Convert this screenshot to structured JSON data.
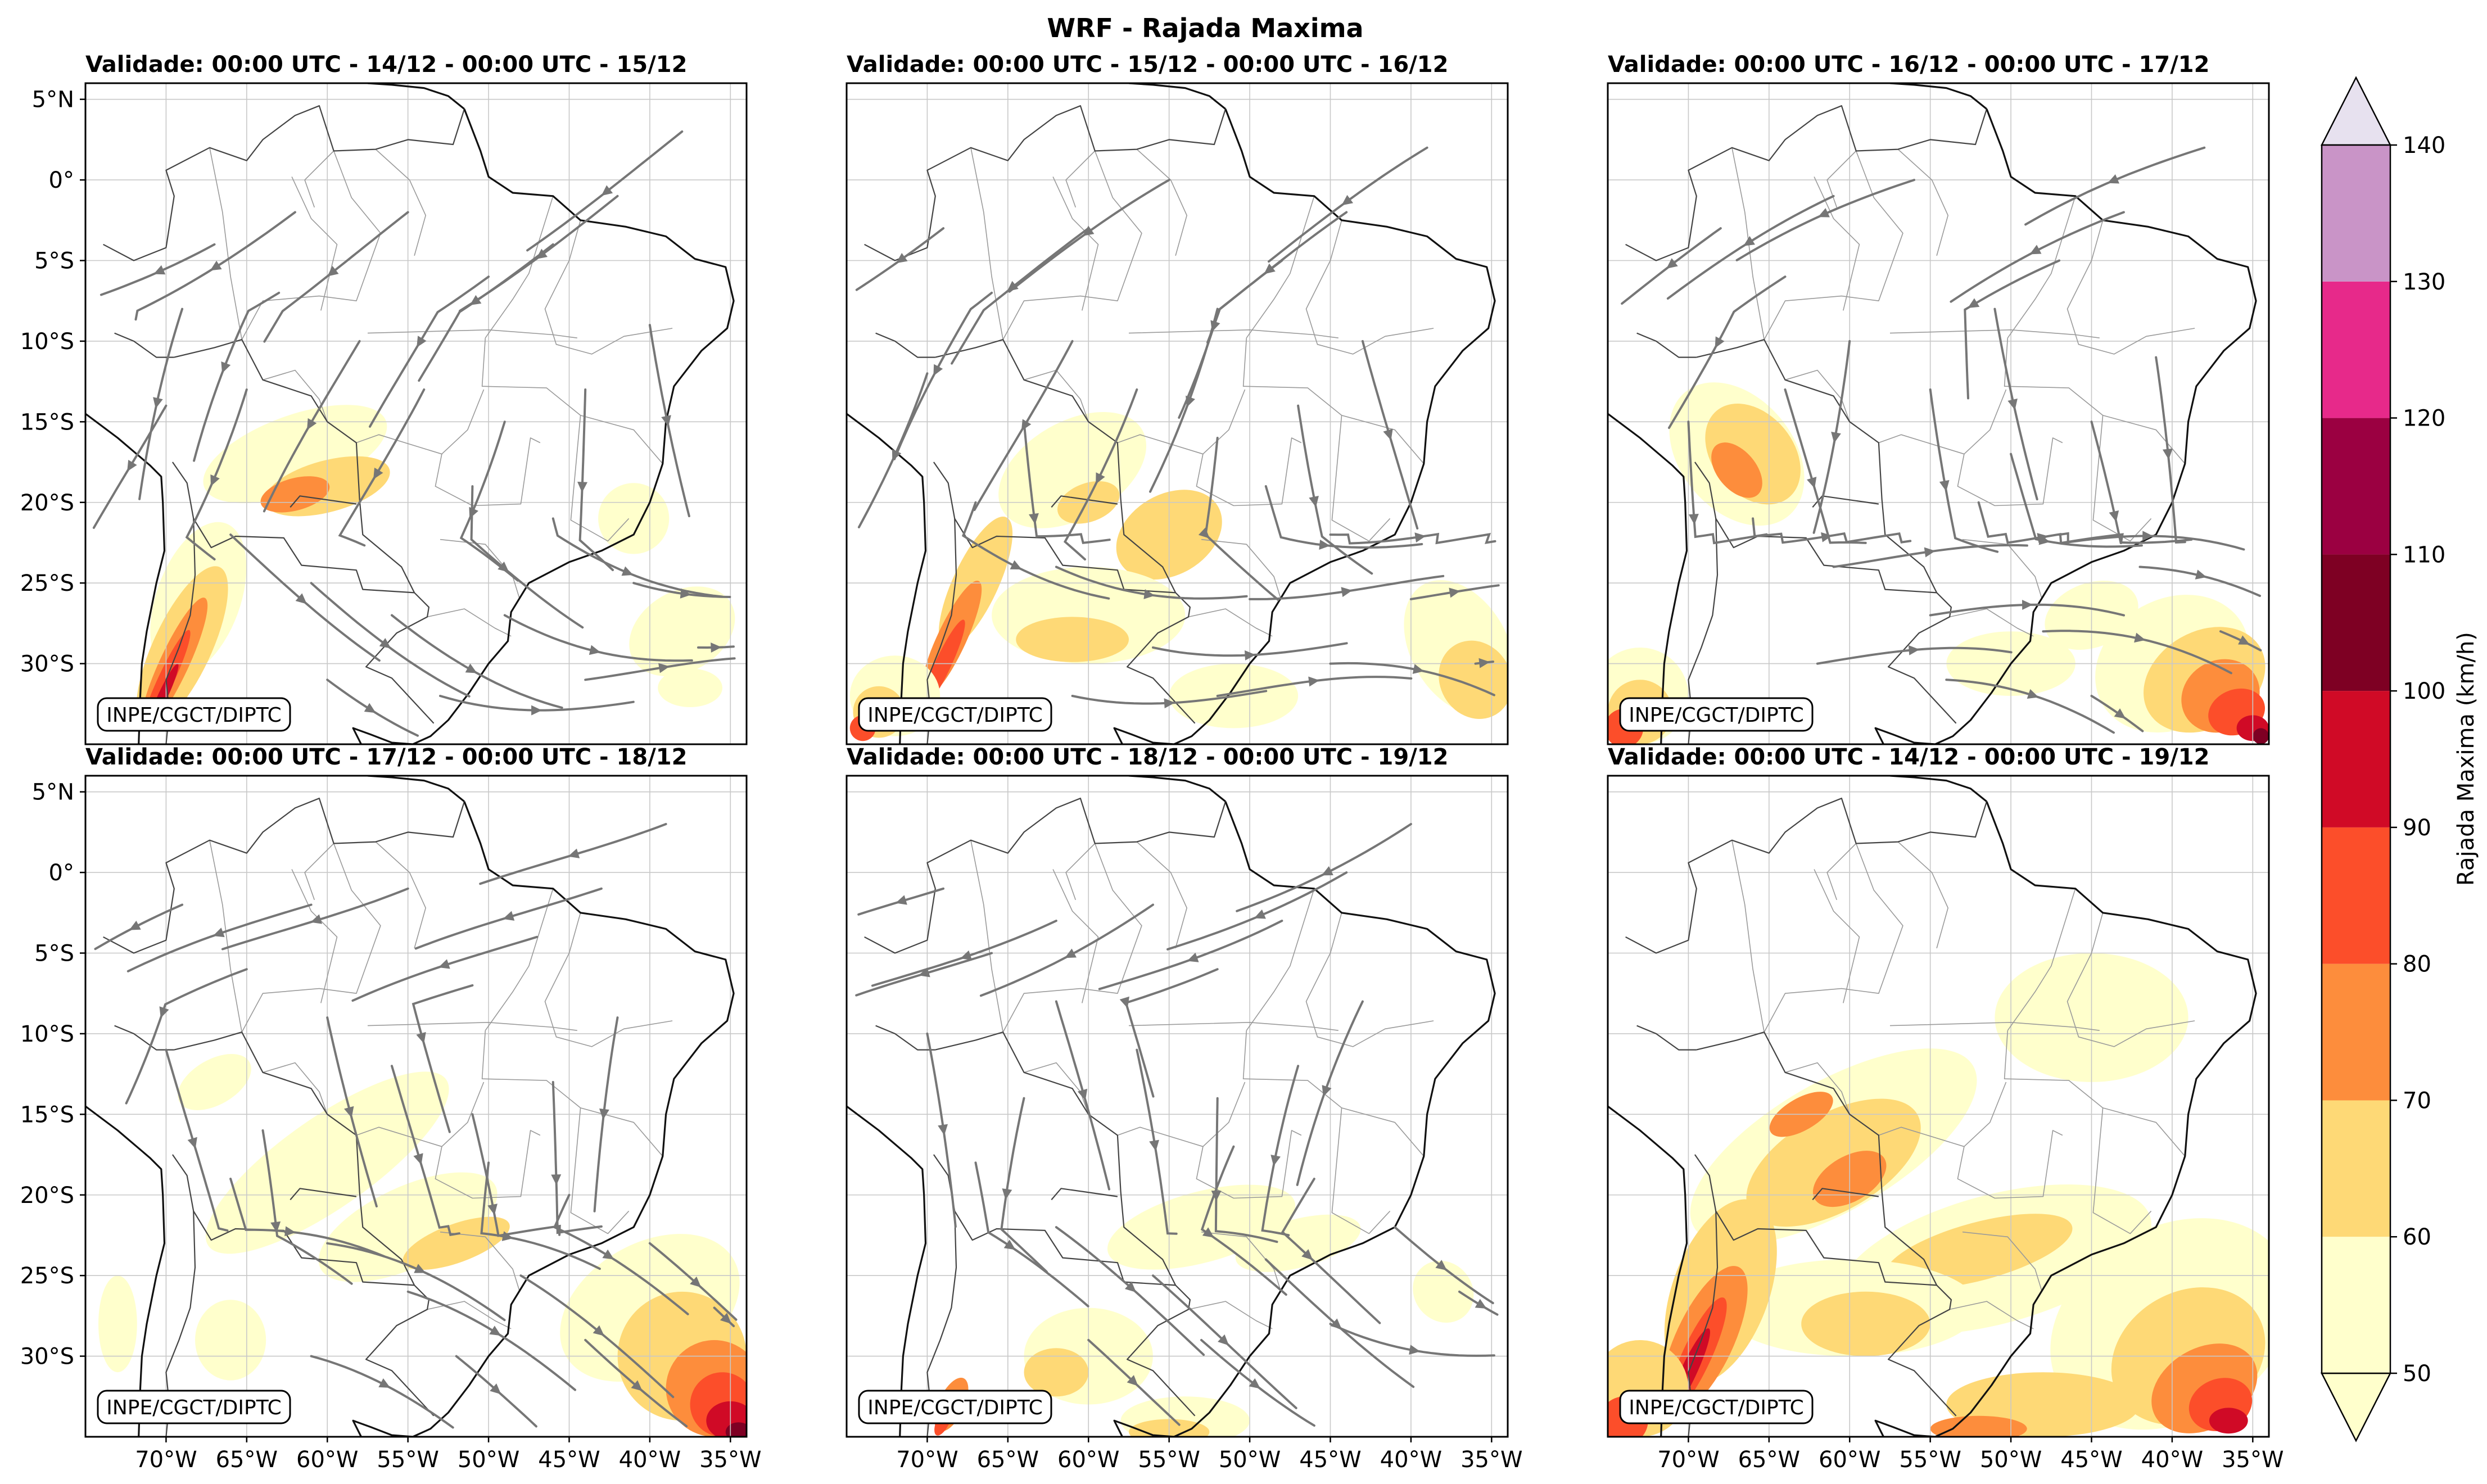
{
  "figure": {
    "title": "WRF - Rajada Maxima"
  },
  "axes": {
    "lat_ticks": [
      "5°N",
      "0°",
      "5°S",
      "10°S",
      "15°S",
      "20°S",
      "25°S",
      "30°S"
    ],
    "lat_values": [
      5,
      0,
      -5,
      -10,
      -15,
      -20,
      -25,
      -30
    ],
    "lon_ticks": [
      "70°W",
      "65°W",
      "60°W",
      "55°W",
      "50°W",
      "45°W",
      "40°W",
      "35°W"
    ],
    "lon_values": [
      -70,
      -65,
      -60,
      -55,
      -50,
      -45,
      -40,
      -35
    ],
    "lat_range": [
      -35,
      6
    ],
    "lon_range": [
      -75,
      -34
    ]
  },
  "panels": [
    {
      "title": "Validade: 00:00 UTC - 14/12 - 00:00 UTC - 15/12",
      "credit": "INPE/CGCT/DIPTC",
      "streamlines": true
    },
    {
      "title": "Validade: 00:00 UTC - 15/12 - 00:00 UTC - 16/12",
      "credit": "INPE/CGCT/DIPTC",
      "streamlines": true
    },
    {
      "title": "Validade: 00:00 UTC - 16/12 - 00:00 UTC - 17/12",
      "credit": "INPE/CGCT/DIPTC",
      "streamlines": true
    },
    {
      "title": "Validade: 00:00 UTC - 17/12 - 00:00 UTC - 18/12",
      "credit": "INPE/CGCT/DIPTC",
      "streamlines": true
    },
    {
      "title": "Validade: 00:00 UTC - 18/12 - 00:00 UTC - 19/12",
      "credit": "INPE/CGCT/DIPTC",
      "streamlines": true
    },
    {
      "title": "Validade: 00:00 UTC - 14/12 - 00:00 UTC - 19/12",
      "credit": "INPE/CGCT/DIPTC",
      "streamlines": false
    }
  ],
  "colorbar": {
    "label": "Rajada Maxima (km/h)",
    "levels": [
      50,
      60,
      70,
      80,
      90,
      100,
      110,
      120,
      130,
      140
    ],
    "colors": [
      "#ffffcc",
      "#fed976",
      "#fd8d3c",
      "#fc4e2a",
      "#d00a26",
      "#7e0023",
      "#9b0041",
      "#e7298a",
      "#c994c7",
      "#e7e1ef"
    ],
    "extend": "both"
  }
}
